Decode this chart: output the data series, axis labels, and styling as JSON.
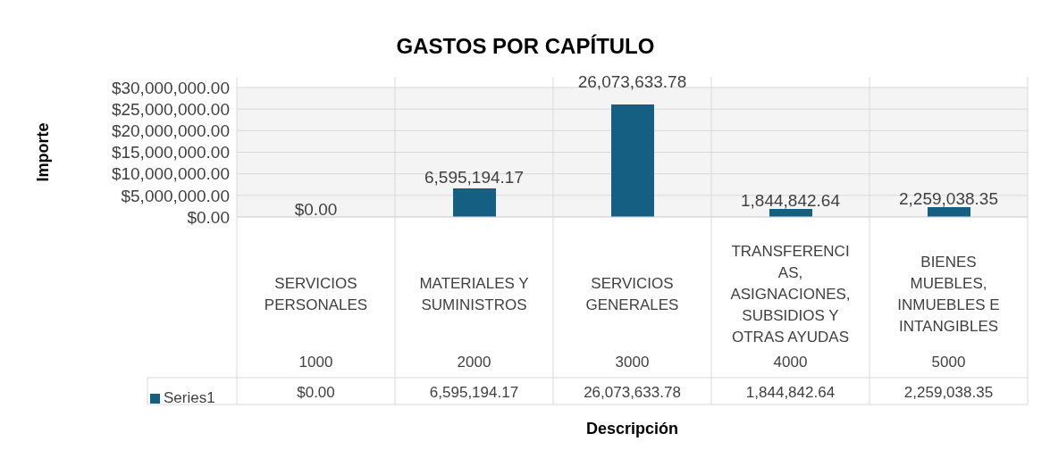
{
  "chart_data": {
    "type": "bar",
    "title": "GASTOS POR CAPÍTULO",
    "xlabel": "Descripción",
    "ylabel": "Importe",
    "categories": [
      "SERVICIOS PERSONALES",
      "MATERIALES Y SUMINISTROS",
      "SERVICIOS GENERALES",
      "TRANSFERENCIAS, ASIGNACIONES, SUBSIDIOS Y OTRAS AYUDAS",
      "BIENES MUEBLES, INMUEBLES E INTANGIBLES"
    ],
    "annotations": [
      "1000",
      "2000",
      "3000",
      "4000",
      "5000"
    ],
    "series": [
      {
        "name": "Series1",
        "color": "#156082",
        "values": [
          0,
          6595194.17,
          26073633.78,
          1844842.64,
          2259038.35
        ],
        "value_labels": [
          "$0.00",
          "6,595,194.17",
          "26,073,633.78",
          "1,844,842.64",
          "2,259,038.35"
        ]
      }
    ],
    "ylim": [
      0,
      30000000
    ],
    "yticks": [
      {
        "value": 0,
        "label": "$0.00"
      },
      {
        "value": 5000000,
        "label": "$5,000,000.00"
      },
      {
        "value": 10000000,
        "label": "$10,000,000.00"
      },
      {
        "value": 15000000,
        "label": "$15,000,000.00"
      },
      {
        "value": 20000000,
        "label": "$20,000,000.00"
      },
      {
        "value": 25000000,
        "label": "$25,000,000.00"
      },
      {
        "value": 30000000,
        "label": "$30,000,000.00"
      }
    ],
    "grid": "y",
    "legend": "bottom"
  }
}
